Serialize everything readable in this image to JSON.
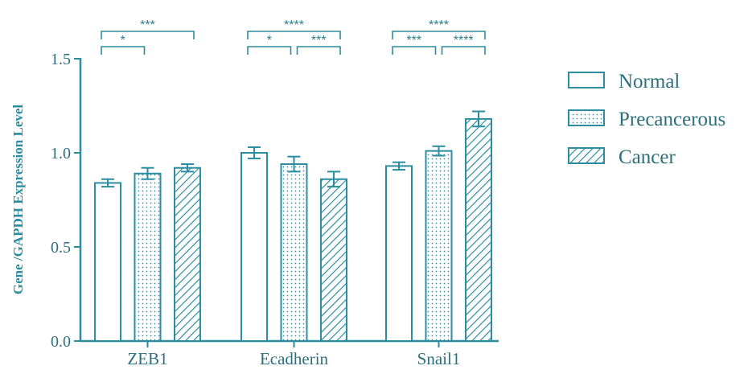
{
  "colors": {
    "main": "#2b8da0",
    "text": "#2d6f7c"
  },
  "chart_data": {
    "type": "bar",
    "title": "",
    "xlabel": "",
    "ylabel": "Gene /GAPDH Expression Level",
    "ylim": [
      0,
      1.5
    ],
    "yticks": [
      "0.0",
      "0.5",
      "1.0",
      "1.5"
    ],
    "categories": [
      "ZEB1",
      "Ecadherin",
      "Snail1"
    ],
    "series": [
      {
        "name": "Normal",
        "pattern": "none",
        "values": [
          0.84,
          1.0,
          0.93
        ],
        "errors": [
          0.02,
          0.03,
          0.02
        ]
      },
      {
        "name": "Precancerous",
        "pattern": "dots",
        "values": [
          0.89,
          0.94,
          1.01
        ],
        "errors": [
          0.03,
          0.04,
          0.025
        ]
      },
      {
        "name": "Cancer",
        "pattern": "hatch",
        "values": [
          0.92,
          0.86,
          1.18
        ],
        "errors": [
          0.02,
          0.04,
          0.04
        ]
      }
    ],
    "legend": {
      "position": "right"
    },
    "grid": false,
    "significance": [
      {
        "category": 0,
        "from": 0,
        "to": 1,
        "label": "*",
        "level": 1
      },
      {
        "category": 0,
        "from": 0,
        "to": 2,
        "label": "***",
        "level": 2
      },
      {
        "category": 1,
        "from": 0,
        "to": 1,
        "label": "*",
        "level": 1
      },
      {
        "category": 1,
        "from": 1,
        "to": 2,
        "label": "***",
        "level": 1
      },
      {
        "category": 1,
        "from": 0,
        "to": 2,
        "label": "****",
        "level": 2
      },
      {
        "category": 2,
        "from": 0,
        "to": 1,
        "label": "***",
        "level": 1
      },
      {
        "category": 2,
        "from": 1,
        "to": 2,
        "label": "****",
        "level": 1
      },
      {
        "category": 2,
        "from": 0,
        "to": 2,
        "label": "****",
        "level": 2
      }
    ]
  }
}
